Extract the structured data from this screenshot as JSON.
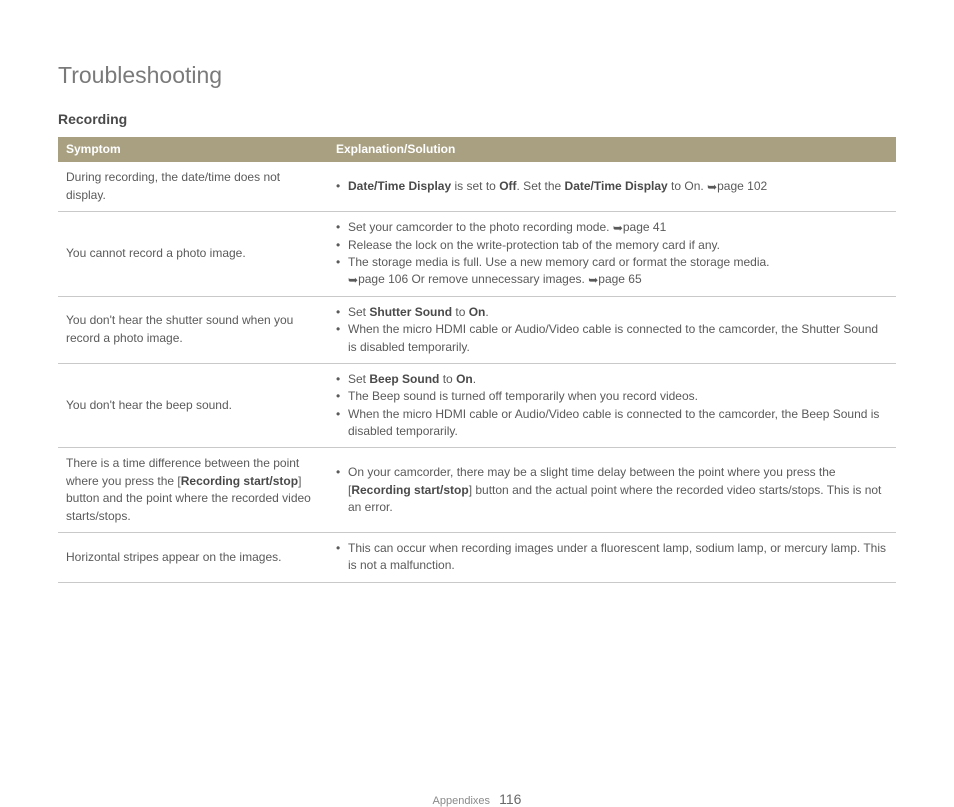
{
  "title": "Troubleshooting",
  "section": "Recording",
  "columns": {
    "symptom": "Symptom",
    "solution": "Explanation/Solution"
  },
  "rows": {
    "r0": {
      "symptom": "During recording, the date/time does not display.",
      "sol_a_pre": "",
      "sol_a_b1": "Date/Time Display",
      "sol_a_mid1": " is set to ",
      "sol_a_b2": "Off",
      "sol_a_mid2": ". Set the ",
      "sol_a_b3": "Date/Time Display",
      "sol_a_mid3": " to On. ",
      "sol_a_ref": "page 102"
    },
    "r1": {
      "symptom": "You cannot record a photo image.",
      "a": "Set your camcorder to the photo recording mode. ",
      "a_ref": "page 41",
      "b": "Release the lock on the write-protection tab of the memory card if any.",
      "c_pre": "The storage media is full. Use a new memory card or format the storage media. ",
      "c_ref1": "page 106",
      "c_mid": " Or remove unnecessary images. ",
      "c_ref2": "page 65"
    },
    "r2": {
      "symptom": "You don't hear the shutter sound when you record a photo image.",
      "a_pre": "Set ",
      "a_b": "Shutter Sound",
      "a_post": " to ",
      "a_b2": "On",
      "a_end": ".",
      "b": "When the micro HDMI cable or Audio/Video cable is connected to the camcorder, the Shutter Sound is disabled temporarily."
    },
    "r3": {
      "symptom": "You don't hear the beep sound.",
      "a_pre": "Set ",
      "a_b": "Beep Sound",
      "a_post": " to ",
      "a_b2": "On",
      "a_end": ".",
      "b": "The Beep sound is turned off temporarily when you record videos.",
      "c": "When the micro HDMI cable or Audio/Video cable is connected to the camcorder, the Beep Sound is disabled temporarily."
    },
    "r4": {
      "symptom_pre": "There is a time difference between the point where you press the [",
      "symptom_b": "Recording start/stop",
      "symptom_post": "] button and the point where the recorded video starts/stops.",
      "a_pre": "On your camcorder, there may be a slight time delay between the point where you press the [",
      "a_b": "Recording start/stop",
      "a_post": "] button and the actual point where the recorded video starts/stops. This is not an error."
    },
    "r5": {
      "symptom": "Horizontal stripes appear on the images.",
      "a": "This can occur when recording images under a fluorescent lamp, sodium lamp, or mercury lamp. This is not a malfunction."
    }
  },
  "footer": {
    "section": "Appendixes",
    "page": "116"
  },
  "glyphs": {
    "arrow": "➥"
  },
  "colors": {
    "header_bg": "#a9a082",
    "header_fg": "#ffffff",
    "text": "#5a5a5a",
    "border": "#c9c9c9"
  }
}
